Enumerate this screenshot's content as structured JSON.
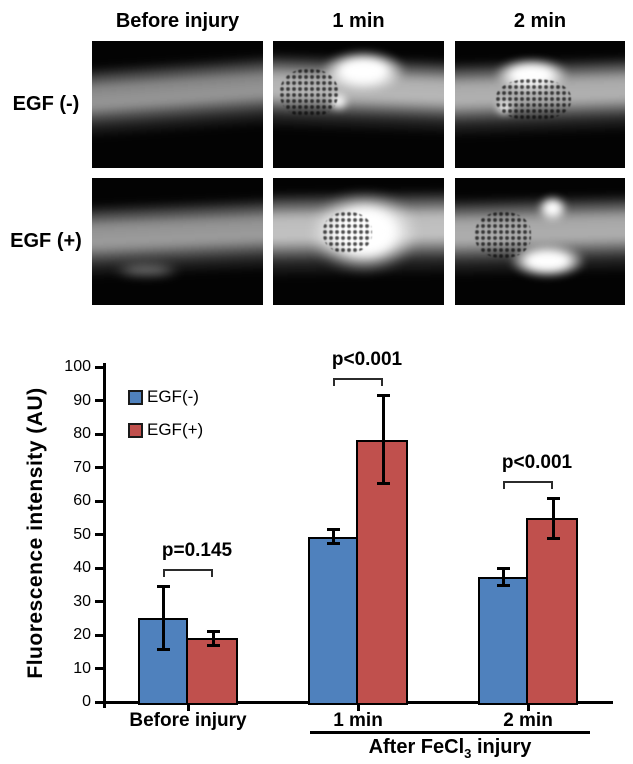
{
  "figure": {
    "micrographs": {
      "column_headers": [
        "Before injury",
        "1 min",
        "2 min"
      ],
      "row_labels": [
        "EGF (-)",
        "EGF (+)"
      ],
      "cells": [
        {
          "row": "EGF (-)",
          "col": "Before injury",
          "description": "uninjured vessel, uniform dim fluorescence"
        },
        {
          "row": "EGF (-)",
          "col": "1 min",
          "description": "injured vessel, bright thrombus patch upper center"
        },
        {
          "row": "EGF (-)",
          "col": "2 min",
          "description": "injured vessel, bright patch upper center with speckled clot"
        },
        {
          "row": "EGF (+)",
          "col": "Before injury",
          "description": "uninjured vessel, uniform dim fluorescence"
        },
        {
          "row": "EGF (+)",
          "col": "1 min",
          "description": "injured vessel, large saturated bright thrombus center"
        },
        {
          "row": "EGF (+)",
          "col": "2 min",
          "description": "injured vessel, bright oval thrombus lower center"
        }
      ]
    }
  },
  "chart_data": {
    "type": "bar",
    "title": "",
    "ylabel": "Fluorescence intensity (AU)",
    "xlabel": "",
    "ylim": [
      0,
      100
    ],
    "ytick_step": 10,
    "yticks": [
      0,
      10,
      20,
      30,
      40,
      50,
      60,
      70,
      80,
      90,
      100
    ],
    "grid": false,
    "legend_position": "inside-top-left",
    "categories": [
      "Before injury",
      "1 min",
      "2 min"
    ],
    "series": [
      {
        "name": "EGF(-)",
        "color": "#4f81bd",
        "values": [
          25,
          49.3,
          37.3
        ],
        "errors": [
          9.5,
          2.2,
          2.6
        ]
      },
      {
        "name": "EGF(+)",
        "color": "#c0504d",
        "values": [
          19,
          78.3,
          54.8
        ],
        "errors": [
          2.3,
          13.3,
          6
        ]
      }
    ],
    "annotations": [
      {
        "category_index": 0,
        "label": "p=0.145"
      },
      {
        "category_index": 1,
        "label": "p<0.001"
      },
      {
        "category_index": 2,
        "label": "p<0.001"
      }
    ],
    "x_group": {
      "pre": "After FeCl",
      "sub": "3",
      "post": " injury",
      "spans_categories": [
        1,
        2
      ]
    }
  }
}
